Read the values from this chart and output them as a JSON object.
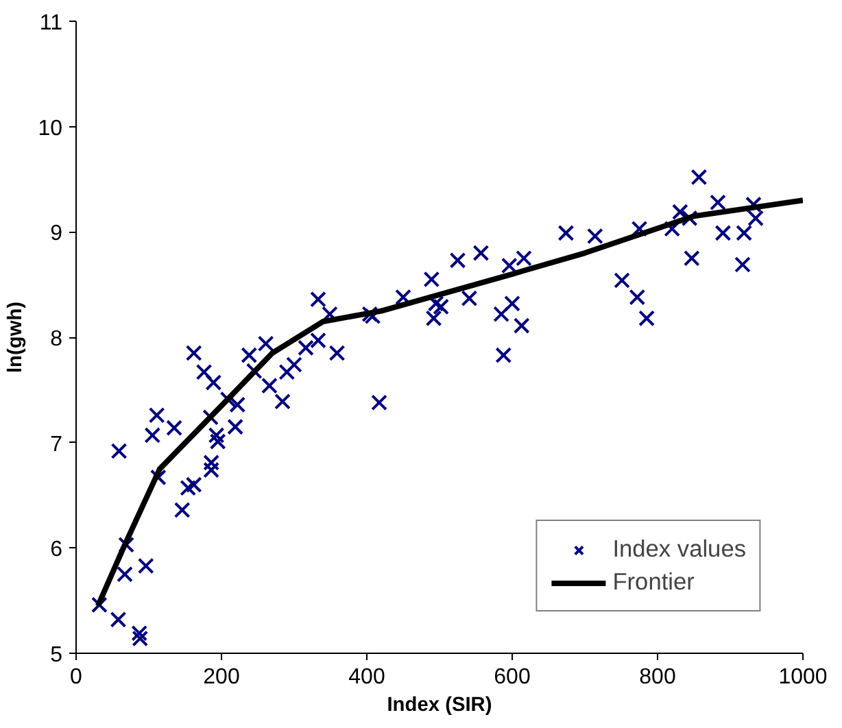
{
  "chart_data": {
    "type": "scatter",
    "xlabel": "Index (SIR)",
    "ylabel": "ln(gwh)",
    "xlim": [
      0,
      1000
    ],
    "ylim": [
      5,
      11
    ],
    "xticks": [
      0,
      200,
      400,
      600,
      800,
      1000
    ],
    "yticks": [
      5,
      6,
      7,
      8,
      9,
      10,
      11
    ],
    "grid": false,
    "legend": "bottom right",
    "series": [
      {
        "name": "Index values",
        "marker": "cross",
        "color": "#000080",
        "x": [
          32,
          58,
          87,
          88,
          67,
          69,
          96,
          59,
          113,
          105,
          111,
          135,
          146,
          154,
          162,
          162,
          176,
          189,
          185,
          186,
          186,
          193,
          195,
          209,
          222,
          219,
          238,
          245,
          261,
          266,
          284,
          290,
          300,
          316,
          333,
          349,
          404,
          408,
          417,
          450,
          489,
          492,
          495,
          502,
          525,
          557,
          541,
          585,
          600,
          613,
          588,
          596,
          616,
          674,
          359,
          333,
          714,
          775,
          751,
          772,
          785,
          820,
          831,
          844,
          847,
          857,
          883,
          890,
          919,
          917,
          935,
          932
        ],
        "values": [
          5.46,
          5.32,
          5.19,
          5.14,
          5.75,
          6.03,
          5.83,
          6.92,
          6.67,
          7.07,
          7.26,
          7.14,
          6.36,
          6.57,
          6.6,
          7.85,
          7.67,
          7.57,
          7.24,
          6.81,
          6.74,
          7.07,
          7.01,
          7.41,
          7.36,
          7.15,
          7.83,
          7.68,
          7.94,
          7.54,
          7.39,
          7.67,
          7.74,
          7.9,
          8.36,
          8.22,
          8.22,
          8.2,
          7.38,
          8.38,
          8.55,
          8.18,
          8.32,
          8.29,
          8.73,
          8.8,
          8.37,
          8.22,
          8.32,
          8.11,
          7.83,
          8.68,
          8.75,
          8.99,
          7.85,
          7.97,
          8.96,
          9.03,
          8.54,
          8.38,
          8.18,
          9.03,
          9.19,
          9.13,
          8.75,
          9.52,
          9.28,
          8.99,
          8.99,
          8.69,
          9.13,
          9.26
        ]
      },
      {
        "name": "Frontier",
        "type": "line",
        "line_style": "solid",
        "color": "#000000",
        "x": [
          30,
          65,
          115,
          200,
          270,
          340,
          420,
          600,
          700,
          850,
          1000
        ],
        "values": [
          5.45,
          6.0,
          6.75,
          7.35,
          7.85,
          8.15,
          8.25,
          8.6,
          8.8,
          9.15,
          9.3
        ]
      }
    ]
  }
}
